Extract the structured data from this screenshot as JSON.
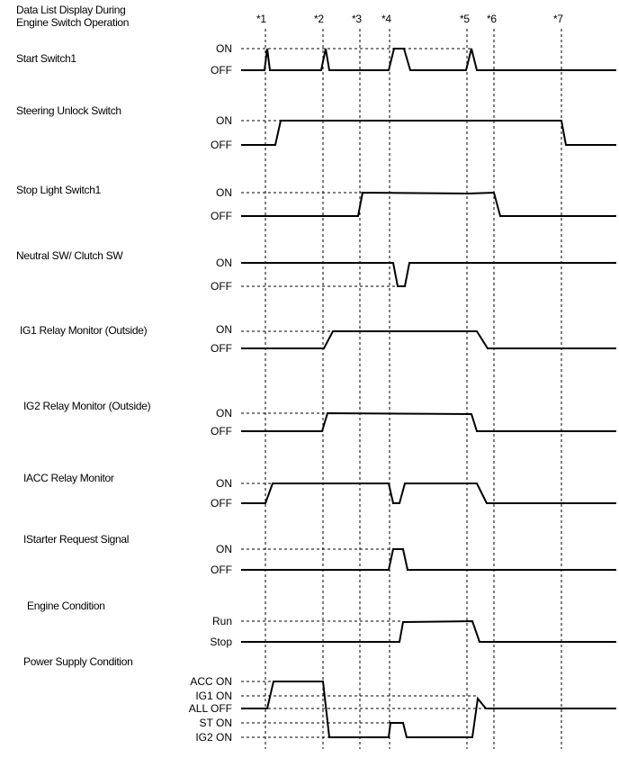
{
  "title_line1": "Data List Display During",
  "title_line2": "Engine Switch Operation",
  "markers": [
    "*1",
    "*2",
    "*3",
    "*4",
    "*5",
    "*6",
    "*7"
  ],
  "signals": [
    {
      "name": "Start Switch1",
      "levels": [
        "ON",
        "OFF"
      ]
    },
    {
      "name": "Steering Unlock Switch",
      "levels": [
        "ON",
        "OFF"
      ]
    },
    {
      "name": "Stop Light Switch1",
      "levels": [
        "ON",
        "OFF"
      ]
    },
    {
      "name": "Neutral SW/ Clutch SW",
      "levels": [
        "ON",
        "OFF"
      ]
    },
    {
      "name": "IG1 Relay Monitor (Outside)",
      "levels": [
        "ON",
        "OFF"
      ]
    },
    {
      "name": "IG2 Relay Monitor (Outside)",
      "levels": [
        "ON",
        "OFF"
      ]
    },
    {
      "name": "IACC Relay Monitor",
      "levels": [
        "ON",
        "OFF"
      ]
    },
    {
      "name": "IStarter Request Signal",
      "levels": [
        "ON",
        "OFF"
      ]
    },
    {
      "name": "Engine Condition",
      "levels": [
        "Run",
        "Stop"
      ]
    },
    {
      "name": "Power Supply Condition",
      "levels": [
        "ACC ON",
        "IG1 ON",
        "ALL OFF",
        "ST ON",
        "IG2 ON"
      ]
    }
  ]
}
